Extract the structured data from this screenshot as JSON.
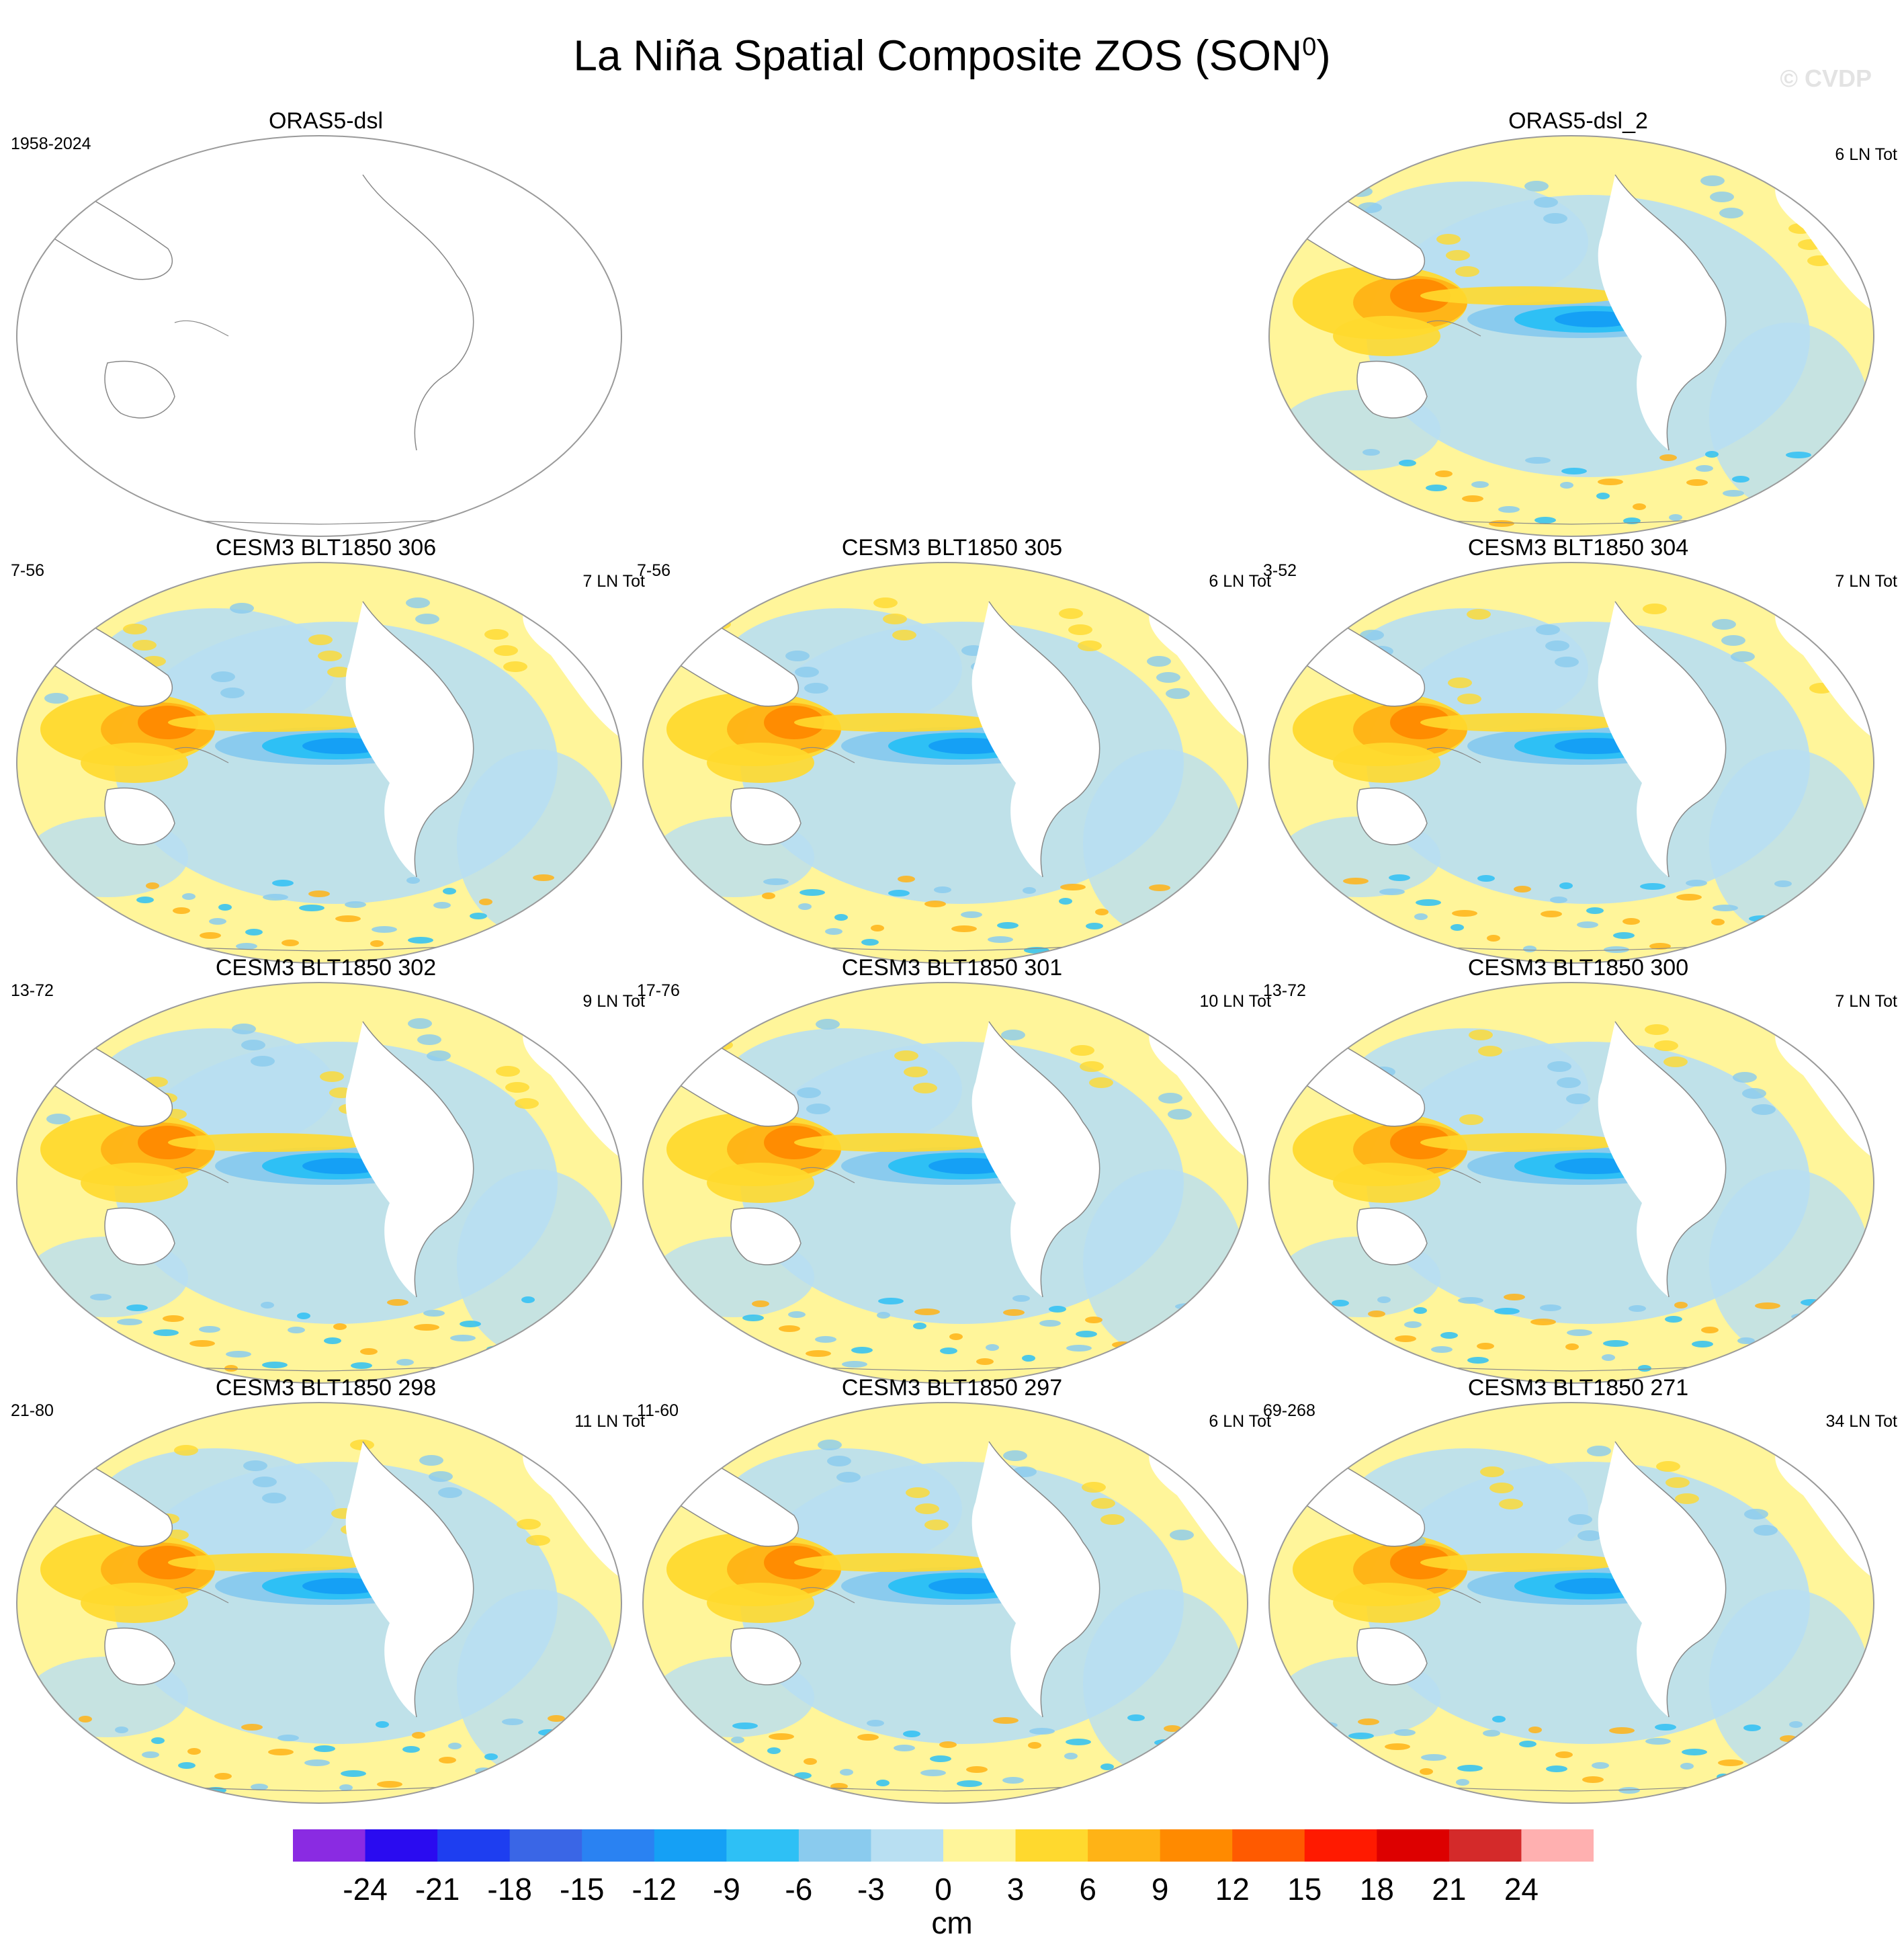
{
  "title": "La Niña Spatial Composite ZOS (SON",
  "title_superscript": "0",
  "title_suffix": ")",
  "watermark": "© CVDP",
  "panels": [
    {
      "title": "ORAS5-dsl",
      "left_label": "1958-2024",
      "right_label": "",
      "filled": false
    },
    {
      "title": "ORAS5-dsl_2",
      "left_label": "",
      "right_label": "6 LN Tot",
      "filled": true
    },
    {
      "title": "CESM3 BLT1850 306",
      "left_label": "7-56",
      "right_label": "7 LN Tot",
      "filled": true
    },
    {
      "title": "CESM3 BLT1850 305",
      "left_label": "7-56",
      "right_label": "6 LN Tot",
      "filled": true
    },
    {
      "title": "CESM3 BLT1850 304",
      "left_label": "3-52",
      "right_label": "7 LN Tot",
      "filled": true
    },
    {
      "title": "CESM3 BLT1850 302",
      "left_label": "13-72",
      "right_label": "9 LN Tot",
      "filled": true
    },
    {
      "title": "CESM3 BLT1850 301",
      "left_label": "17-76",
      "right_label": "10 LN Tot",
      "filled": true
    },
    {
      "title": "CESM3 BLT1850 300",
      "left_label": "13-72",
      "right_label": "7 LN Tot",
      "filled": true
    },
    {
      "title": "CESM3 BLT1850 298",
      "left_label": "21-80",
      "right_label": "11 LN Tot",
      "filled": true
    },
    {
      "title": "CESM3 BLT1850 297",
      "left_label": "11-60",
      "right_label": "6 LN Tot",
      "filled": true
    },
    {
      "title": "CESM3 BLT1850 271",
      "left_label": "69-268",
      "right_label": "34 LN Tot",
      "filled": true
    }
  ],
  "colorbar": {
    "unit": "cm",
    "ticks": [
      "-24",
      "-21",
      "-18",
      "-15",
      "-12",
      "-9",
      "-6",
      "-3",
      "0",
      "3",
      "6",
      "9",
      "12",
      "15",
      "18",
      "21",
      "24"
    ],
    "colors": [
      "#8a2be2",
      "#2a0bf0",
      "#1e3ef0",
      "#3a66e6",
      "#2a82f2",
      "#15a0f5",
      "#2ec0f5",
      "#8acbee",
      "#b8dff2",
      "#fff59a",
      "#ffd92e",
      "#ffb316",
      "#ff8a00",
      "#ff5a00",
      "#ff1a00",
      "#dd0000",
      "#d42a2a",
      "#ffb0b0"
    ]
  }
}
